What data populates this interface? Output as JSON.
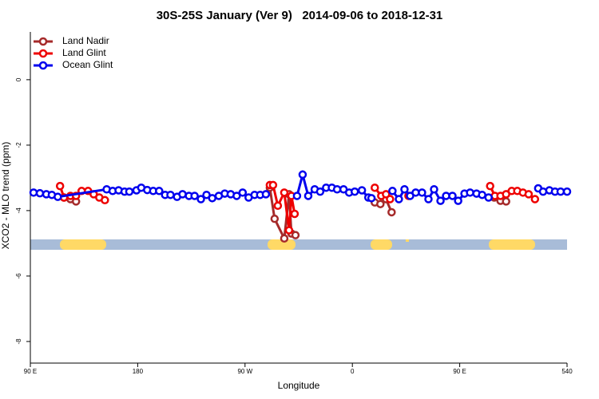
{
  "chart_data": {
    "type": "line",
    "title": "30S-25S January (Ver 9)   2014-09-06 to 2018-12-31",
    "xlabel": "Longitude",
    "ylabel": "XCO2 - MLO trend (ppm)",
    "xlim": [
      90,
      540
    ],
    "ylim": [
      -8.66,
      1.46
    ],
    "xticks": [
      {
        "value": 90,
        "label": "90 E"
      },
      180,
      {
        "value": 270,
        "label": "90 W"
      },
      {
        "value": 360,
        "label": "0"
      },
      {
        "value": 450,
        "label": "90 E"
      },
      540
    ],
    "yticks": [
      0,
      -2,
      -4,
      -6,
      -8
    ],
    "legend": "top-left",
    "series": [
      {
        "name": "Land Nadir",
        "color": "#a52a2a",
        "x": [
          118.2,
          123.6,
          128.3,
          null,
          290.8,
          294.8,
          302.9,
          306.9,
          308.9,
          312.3,
          null,
          378.8,
          383.5,
          388.2,
          392.9,
          null,
          478.9,
          484.2,
          488.9
        ],
        "values": [
          -3.6,
          -3.65,
          -3.72,
          null,
          -3.3,
          -4.25,
          -4.85,
          -3.5,
          -4.7,
          -4.75,
          null,
          -3.75,
          -3.8,
          -3.65,
          -4.05,
          null,
          -3.6,
          -3.7,
          -3.72
        ]
      },
      {
        "name": "Land Glint",
        "color": "#ee0000",
        "x": [
          114.9,
          118.2,
          123.6,
          128.3,
          133.0,
          138.4,
          143.1,
          147.8,
          152.5,
          null,
          290.8,
          293.5,
          297.5,
          302.9,
          306.9,
          308.9,
          311.6,
          null,
          378.8,
          384.2,
          388.2,
          391.6,
          null,
          407.0,
          null,
          475.5,
          479.5,
          484.2,
          488.9,
          493.6,
          498.3,
          503.0,
          507.8,
          513.1
        ],
        "values": [
          -3.25,
          -3.6,
          -3.55,
          -3.55,
          -3.4,
          -3.4,
          -3.5,
          -3.6,
          -3.68,
          null,
          -3.22,
          -3.22,
          -3.85,
          -3.45,
          -4.6,
          -3.55,
          -4.1,
          null,
          -3.3,
          -3.55,
          -3.5,
          -3.65,
          null,
          -3.55,
          null,
          -3.25,
          -3.55,
          -3.55,
          -3.5,
          -3.4,
          -3.4,
          -3.45,
          -3.5,
          -3.65
        ]
      },
      {
        "name": "Ocean Glint",
        "color": "#0000ee",
        "x": [
          92.7,
          98.0,
          103.4,
          108.0,
          113.0,
          154.0,
          159.0,
          164.0,
          169.0,
          173.0,
          179.0,
          183.0,
          188.0,
          193.0,
          198.0,
          203.0,
          207.5,
          213.0,
          217.6,
          223.0,
          227.7,
          233.0,
          237.7,
          242.5,
          248.0,
          253.0,
          258.0,
          263.0,
          268.0,
          273.0,
          278.0,
          282.7,
          287.5,
          null,
          313.6,
          318.3,
          323.0,
          328.4,
          333.0,
          338.0,
          342.8,
          347.2,
          352.6,
          357.3,
          362.0,
          368.0,
          373.4,
          376.0,
          null,
          393.6,
          399.0,
          403.7,
          408.4,
          413.1,
          418.4,
          423.8,
          428.5,
          433.9,
          438.6,
          443.9,
          448.7,
          454.0,
          458.7,
          464.1,
          468.8,
          474.2,
          null,
          515.8,
          519.9,
          525.2,
          529.9,
          534.6,
          540.0
        ],
        "values": [
          -3.45,
          -3.47,
          -3.5,
          -3.52,
          -3.58,
          -3.35,
          -3.4,
          -3.38,
          -3.42,
          -3.42,
          -3.38,
          -3.3,
          -3.37,
          -3.4,
          -3.4,
          -3.52,
          -3.52,
          -3.58,
          -3.5,
          -3.55,
          -3.55,
          -3.65,
          -3.52,
          -3.62,
          -3.55,
          -3.48,
          -3.5,
          -3.55,
          -3.45,
          -3.6,
          -3.52,
          -3.52,
          -3.5,
          null,
          -3.55,
          -2.9,
          -3.55,
          -3.35,
          -3.42,
          -3.3,
          -3.3,
          -3.35,
          -3.35,
          -3.45,
          -3.42,
          -3.38,
          -3.6,
          -3.62,
          null,
          -3.4,
          -3.65,
          -3.35,
          -3.55,
          -3.45,
          -3.45,
          -3.65,
          -3.35,
          -3.7,
          -3.55,
          -3.55,
          -3.7,
          -3.48,
          -3.45,
          -3.48,
          -3.52,
          -3.6,
          null,
          -3.32,
          -3.42,
          -3.38,
          -3.42,
          -3.42,
          -3.42
        ]
      }
    ]
  }
}
